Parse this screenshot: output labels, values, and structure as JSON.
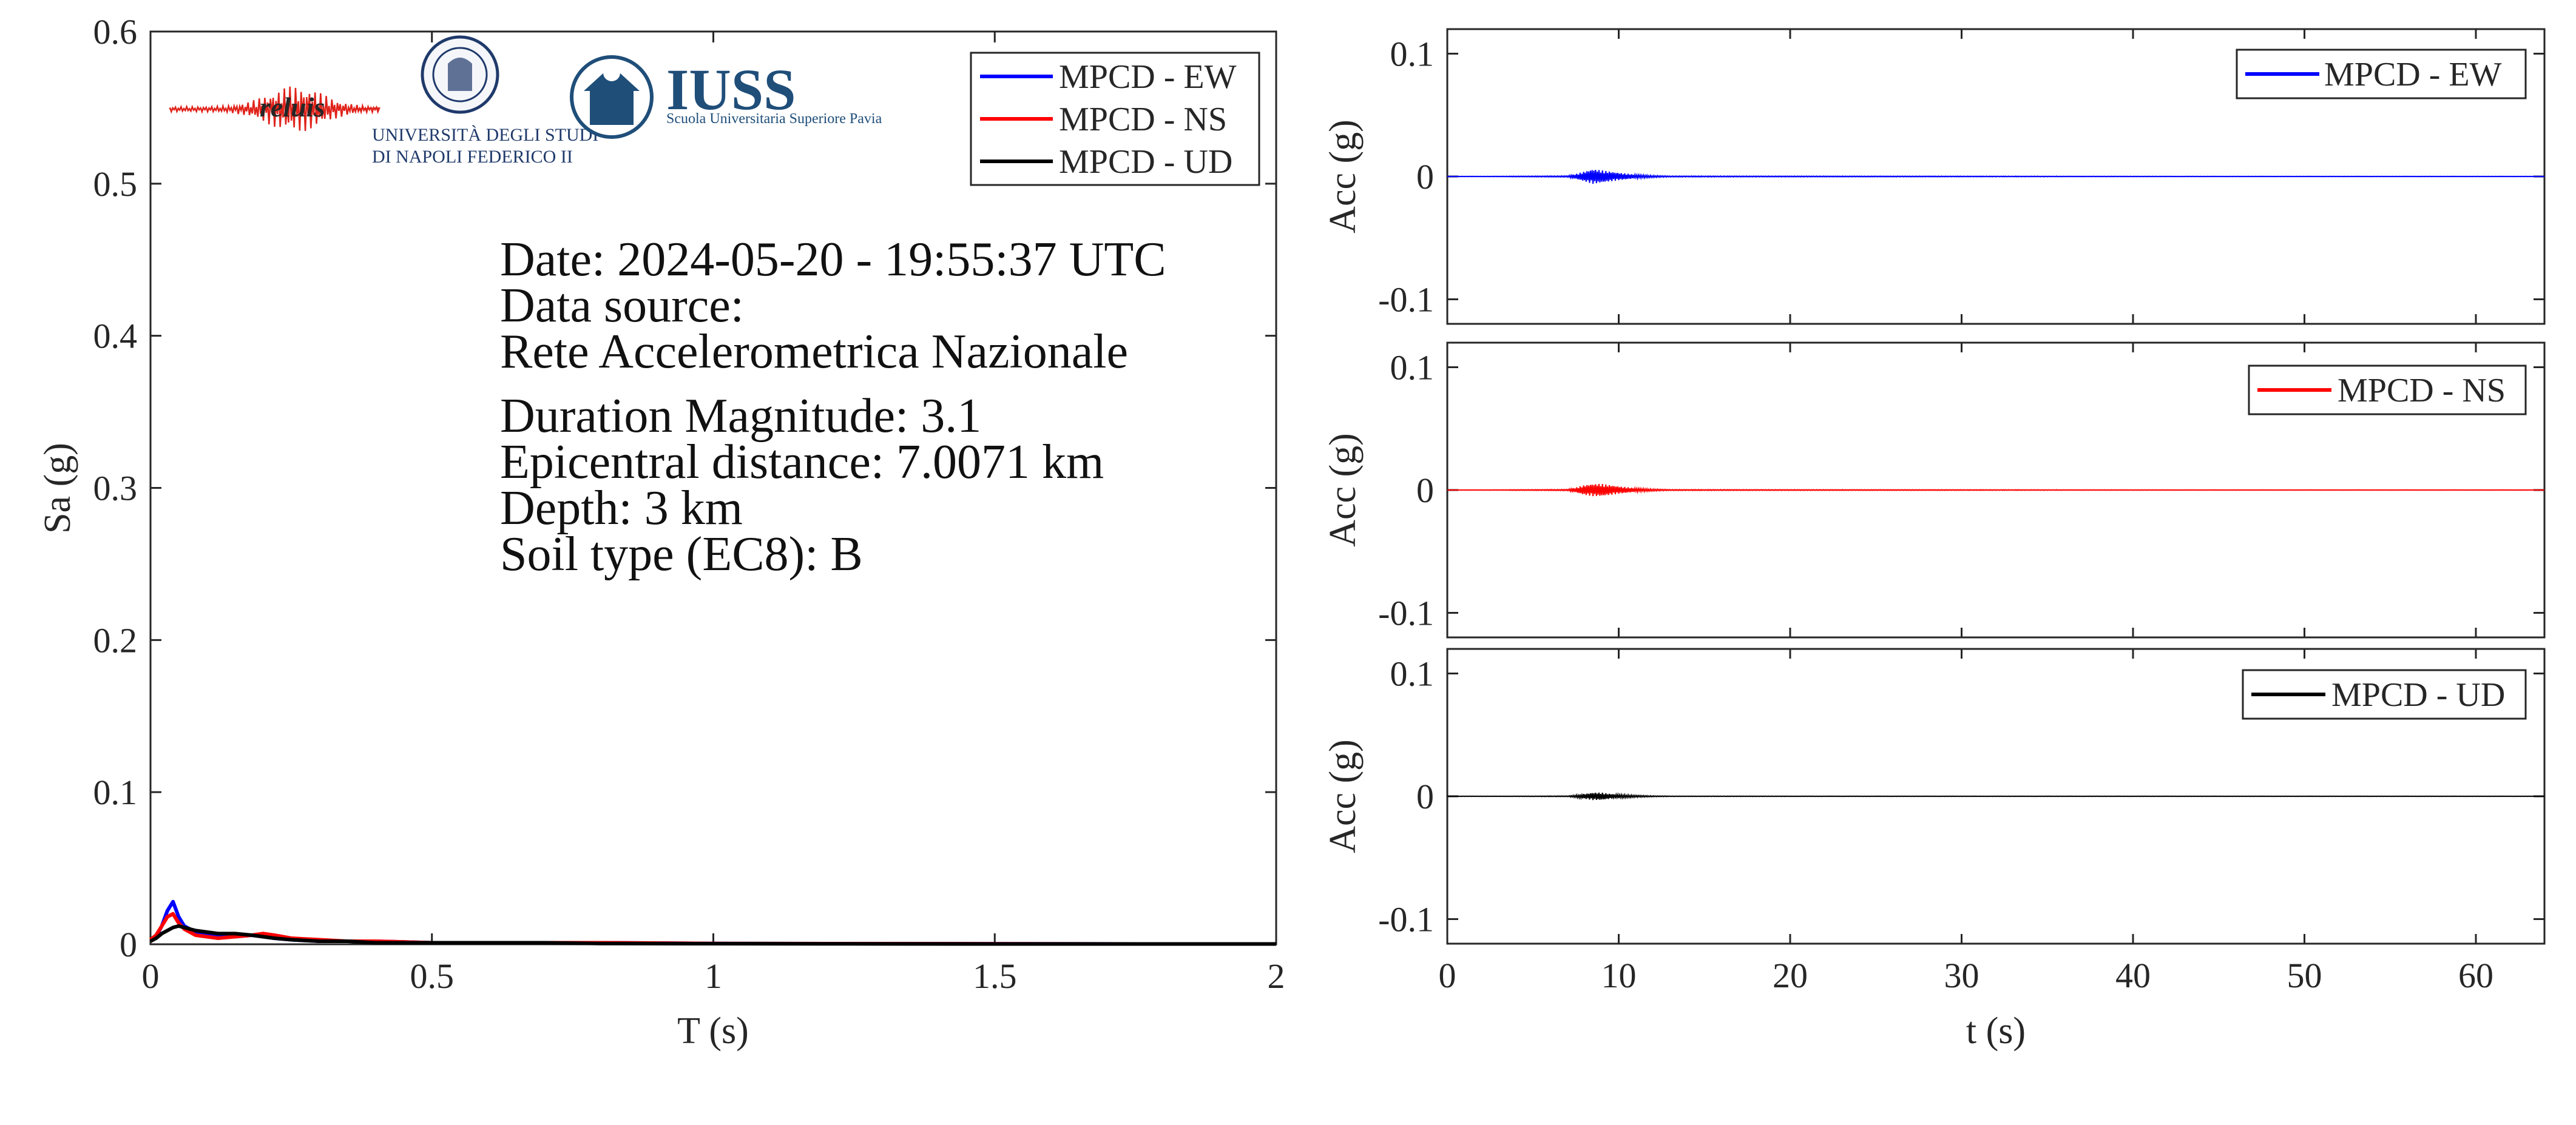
{
  "chart_data": [
    {
      "type": "line",
      "xlabel": "T (s)",
      "ylabel": "Sa (g)",
      "xlim": [
        0,
        2
      ],
      "ylim": [
        0,
        0.6
      ],
      "xticks": [
        0,
        0.5,
        1,
        1.5,
        2
      ],
      "xtick_labels": [
        "0",
        "0.5",
        "1",
        "1.5",
        "2"
      ],
      "yticks": [
        0,
        0.1,
        0.2,
        0.3,
        0.4,
        0.5,
        0.6
      ],
      "ytick_labels": [
        "0",
        "0.1",
        "0.2",
        "0.3",
        "0.4",
        "0.5",
        "0.6"
      ],
      "grid": false,
      "legend_position": "top-right",
      "series": [
        {
          "name": "MPCD - EW",
          "color": "#0000ff",
          "x": [
            0,
            0.01,
            0.02,
            0.03,
            0.04,
            0.05,
            0.06,
            0.08,
            0.1,
            0.12,
            0.15,
            0.18,
            0.2,
            0.22,
            0.25,
            0.3,
            0.35,
            0.4,
            0.5,
            0.6,
            0.7,
            0.8,
            1.0,
            1.2,
            1.5,
            1.75,
            2.0
          ],
          "y": [
            0.003,
            0.005,
            0.012,
            0.022,
            0.028,
            0.018,
            0.012,
            0.008,
            0.007,
            0.006,
            0.005,
            0.006,
            0.005,
            0.004,
            0.003,
            0.002,
            0.002,
            0.002,
            0.001,
            0.001,
            0.001,
            0.001,
            0.0005,
            0.0004,
            0.0003,
            0.0002,
            0.0002
          ]
        },
        {
          "name": "MPCD - NS",
          "color": "#ff0000",
          "x": [
            0,
            0.01,
            0.02,
            0.03,
            0.04,
            0.05,
            0.06,
            0.08,
            0.1,
            0.12,
            0.15,
            0.18,
            0.2,
            0.22,
            0.25,
            0.3,
            0.35,
            0.4,
            0.5,
            0.6,
            0.7,
            0.8,
            1.0,
            1.2,
            1.5,
            1.75,
            2.0
          ],
          "y": [
            0.003,
            0.006,
            0.012,
            0.018,
            0.02,
            0.014,
            0.01,
            0.006,
            0.005,
            0.004,
            0.005,
            0.006,
            0.007,
            0.006,
            0.004,
            0.003,
            0.002,
            0.002,
            0.001,
            0.001,
            0.001,
            0.001,
            0.0005,
            0.0004,
            0.0003,
            0.0002,
            0.0002
          ]
        },
        {
          "name": "MPCD - UD",
          "color": "#000000",
          "x": [
            0,
            0.01,
            0.02,
            0.03,
            0.04,
            0.05,
            0.06,
            0.08,
            0.1,
            0.12,
            0.15,
            0.18,
            0.2,
            0.22,
            0.25,
            0.3,
            0.35,
            0.4,
            0.5,
            0.6,
            0.7,
            0.8,
            1.0,
            1.2,
            1.5,
            1.75,
            2.0
          ],
          "y": [
            0.002,
            0.004,
            0.007,
            0.009,
            0.011,
            0.012,
            0.011,
            0.009,
            0.008,
            0.007,
            0.007,
            0.006,
            0.005,
            0.004,
            0.003,
            0.002,
            0.002,
            0.001,
            0.001,
            0.001,
            0.001,
            0.0005,
            0.0004,
            0.0003,
            0.0002,
            0.0002,
            0.0002
          ]
        }
      ],
      "annotations": [
        "Date: 2024-05-20 - 19:55:37 UTC",
        "Data source:",
        "Rete Accelerometrica Nazionale",
        "Duration Magnitude: 3.1",
        "Epicentral distance: 7.0071 km",
        "Depth: 3 km",
        "Soil type (EC8): B"
      ],
      "logos": {
        "reluis": "reluis",
        "unina_line1": "UNIVERSITÀ DEGLI STUDI",
        "unina_line2": "DI NAPOLI FEDERICO II",
        "iuss_name": "IUSS",
        "iuss_subtitle": "Scuola Universitaria Superiore Pavia"
      }
    },
    {
      "type": "line",
      "xlabel": "",
      "ylabel": "Acc (g)",
      "xlim": [
        0,
        64
      ],
      "ylim": [
        -0.12,
        0.12
      ],
      "yticks": [
        -0.1,
        0,
        0.1
      ],
      "ytick_labels": [
        "-0.1",
        "0",
        "0.1"
      ],
      "grid": false,
      "legend_position": "top-right",
      "series": [
        {
          "name": "MPCD - EW",
          "color": "#0000ff",
          "x": [
            0,
            7,
            7.5,
            8,
            8.5,
            9,
            9.5,
            10,
            11,
            12,
            13,
            64
          ],
          "y": [
            0,
            0.0005,
            0.002,
            0.004,
            0.006,
            0.005,
            0.004,
            0.003,
            0.0015,
            0.0008,
            0.0004,
            0
          ]
        }
      ]
    },
    {
      "type": "line",
      "xlabel": "",
      "ylabel": "Acc (g)",
      "xlim": [
        0,
        64
      ],
      "ylim": [
        -0.12,
        0.12
      ],
      "yticks": [
        -0.1,
        0,
        0.1
      ],
      "ytick_labels": [
        "-0.1",
        "0",
        "0.1"
      ],
      "grid": false,
      "legend_position": "top-right",
      "series": [
        {
          "name": "MPCD - NS",
          "color": "#ff0000",
          "x": [
            0,
            7,
            7.5,
            8,
            8.5,
            9,
            9.5,
            10,
            11,
            12,
            13,
            64
          ],
          "y": [
            0,
            0.0005,
            0.002,
            0.004,
            0.005,
            0.005,
            0.004,
            0.003,
            0.0015,
            0.0008,
            0.0004,
            0
          ]
        }
      ]
    },
    {
      "type": "line",
      "xlabel": "t (s)",
      "ylabel": "Acc (g)",
      "xlim": [
        0,
        64
      ],
      "ylim": [
        -0.12,
        0.12
      ],
      "xticks": [
        0,
        10,
        20,
        30,
        40,
        50,
        60
      ],
      "xtick_labels": [
        "0",
        "10",
        "20",
        "30",
        "40",
        "50",
        "60"
      ],
      "yticks": [
        -0.1,
        0,
        0.1
      ],
      "ytick_labels": [
        "-0.1",
        "0",
        "0.1"
      ],
      "grid": false,
      "legend_position": "top-right",
      "series": [
        {
          "name": "MPCD - UD",
          "color": "#000000",
          "x": [
            0,
            7,
            7.5,
            8,
            8.5,
            9,
            9.5,
            10,
            11,
            12,
            13,
            64
          ],
          "y": [
            0,
            0.0003,
            0.001,
            0.002,
            0.003,
            0.003,
            0.002,
            0.0015,
            0.0008,
            0.0004,
            0.0002,
            0
          ]
        }
      ]
    }
  ]
}
